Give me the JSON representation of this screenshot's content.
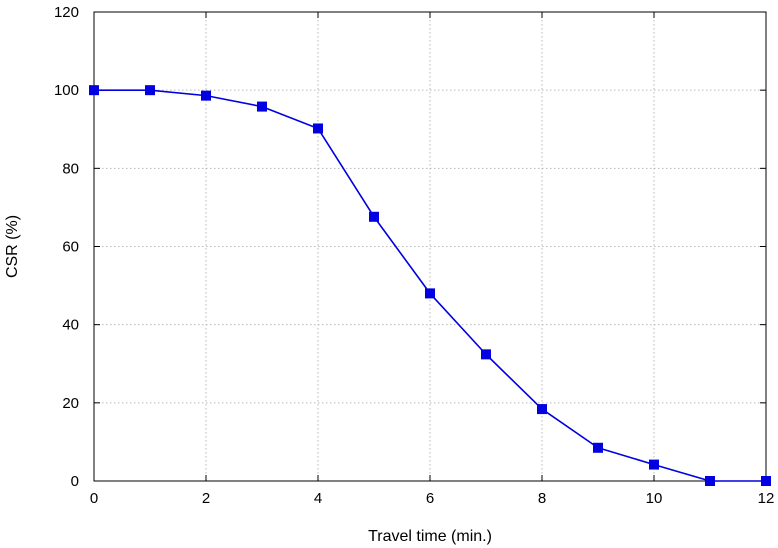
{
  "chart_data": {
    "type": "line",
    "title": "",
    "xlabel": "Travel time (min.)",
    "ylabel": "CSR (%)",
    "xlim": [
      0,
      12
    ],
    "ylim": [
      0,
      120
    ],
    "xticks": [
      0,
      2,
      4,
      6,
      8,
      10,
      12
    ],
    "yticks": [
      0,
      20,
      40,
      60,
      80,
      100,
      120
    ],
    "grid": true,
    "series": [
      {
        "color": "#0000e0",
        "marker": "square",
        "x": [
          0,
          1,
          2,
          3,
          4,
          5,
          6,
          7,
          8,
          9,
          10,
          11,
          12
        ],
        "y": [
          100,
          100,
          98.6,
          95.8,
          90.2,
          67.6,
          48.0,
          32.4,
          18.4,
          8.5,
          4.2,
          0,
          0
        ]
      }
    ]
  }
}
